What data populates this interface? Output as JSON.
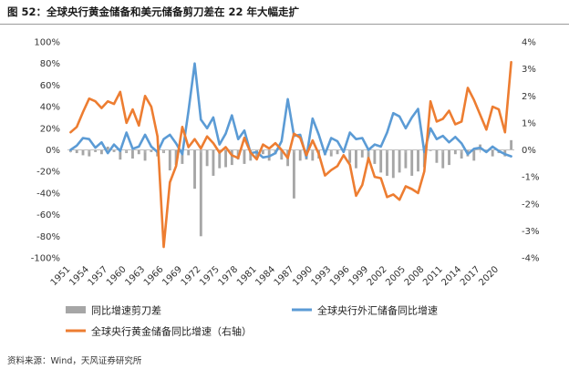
{
  "header": {
    "title": "图 52：全球央行黄金储备和美元储备剪刀差在 22 年大幅走扩"
  },
  "footer": {
    "source": "资料来源：Wind，天风证券研究所"
  },
  "chart_data": {
    "type": "bar+line",
    "title": "全球央行黄金储备和美元储备剪刀差在 22 年大幅走扩",
    "years": [
      1951,
      1952,
      1953,
      1954,
      1955,
      1956,
      1957,
      1958,
      1959,
      1960,
      1961,
      1962,
      1963,
      1964,
      1965,
      1966,
      1967,
      1968,
      1969,
      1970,
      1971,
      1972,
      1973,
      1974,
      1975,
      1976,
      1977,
      1978,
      1979,
      1980,
      1981,
      1982,
      1983,
      1984,
      1985,
      1986,
      1987,
      1988,
      1989,
      1990,
      1991,
      1992,
      1993,
      1994,
      1995,
      1996,
      1997,
      1998,
      1999,
      2000,
      2001,
      2002,
      2003,
      2004,
      2005,
      2006,
      2007,
      2008,
      2009,
      2010,
      2011,
      2012,
      2013,
      2014,
      2015,
      2016,
      2017,
      2018,
      2019,
      2020,
      2021,
      2022
    ],
    "x_tick_labels": [
      "1951",
      "1954",
      "1957",
      "1960",
      "1963",
      "1966",
      "1969",
      "1972",
      "1975",
      "1978",
      "1981",
      "1984",
      "1987",
      "1990",
      "1993",
      "1996",
      "1999",
      "2002",
      "2005",
      "2008",
      "2011",
      "2014",
      "2017",
      "2020"
    ],
    "left_axis": {
      "ylim": [
        -100,
        100
      ],
      "ticks": [
        "100%",
        "80%",
        "60%",
        "40%",
        "20%",
        "0%",
        "-20%",
        "-40%",
        "-60%",
        "-80%",
        "-100%"
      ]
    },
    "right_axis": {
      "ylim": [
        -4,
        4
      ],
      "ticks": [
        "4%",
        "3%",
        "2%",
        "1%",
        "0%",
        "-1%",
        "-2%",
        "-3%",
        "-4%"
      ]
    },
    "colors": {
      "bar": "#a6a6a6",
      "line_blue": "#5b9bd5",
      "line_orange": "#ed7d31",
      "axis": "#bfbfbf"
    },
    "series": [
      {
        "name": "同比增速剪刀差",
        "axis": "left",
        "type": "bar",
        "values": [
          -2,
          -3,
          -5,
          -6,
          -2,
          -4,
          3,
          -2,
          -9,
          -3,
          -8,
          -4,
          -10,
          -2,
          -6,
          -3,
          -19,
          -14,
          -13,
          -5,
          -36,
          -80,
          -15,
          -24,
          -17,
          -16,
          -14,
          -9,
          -13,
          -10,
          -7,
          -4,
          -10,
          -4,
          -9,
          -15,
          -45,
          -10,
          -9,
          -10,
          -8,
          -5,
          -6,
          -4,
          -2,
          -12,
          -17,
          -7,
          -11,
          -13,
          -21,
          -24,
          -26,
          -21,
          -17,
          -24,
          -20,
          -16,
          -1,
          -12,
          -17,
          -14,
          -4,
          -8,
          -6,
          -10,
          5,
          -2,
          -6,
          -3,
          -6,
          9
        ]
      },
      {
        "name": "全球央行外汇储备同比增速",
        "axis": "left",
        "type": "line",
        "values": [
          0,
          4,
          11,
          10,
          2,
          7,
          -3,
          5,
          -1,
          16,
          1,
          3,
          14,
          3,
          -2,
          10,
          14,
          6,
          -4,
          36,
          80,
          28,
          20,
          30,
          5,
          15,
          32,
          10,
          18,
          -3,
          -2,
          -7,
          -6,
          -3,
          8,
          47,
          13,
          14,
          -7,
          29,
          14,
          -4,
          11,
          8,
          -2,
          16,
          10,
          11,
          0,
          5,
          3,
          16,
          34,
          31,
          20,
          30,
          38,
          -2,
          20,
          10,
          13,
          7,
          12,
          6,
          -4,
          1,
          2,
          -2,
          3,
          -1,
          -4,
          -6
        ]
      },
      {
        "name": "全球央行黄金储备同比增速（右轴）",
        "axis": "right",
        "type": "line",
        "values": [
          0.65,
          0.85,
          1.4,
          1.9,
          1.8,
          1.55,
          1.8,
          1.7,
          2.15,
          1.0,
          1.5,
          0.9,
          2.0,
          1.6,
          0.5,
          -3.6,
          -1.2,
          -0.6,
          0.85,
          0.1,
          0.4,
          0.05,
          0.5,
          0.25,
          -0.1,
          0.1,
          -0.2,
          -0.3,
          0.45,
          -0.1,
          -0.35,
          0.2,
          0.05,
          0.25,
          0.0,
          -0.3,
          0.6,
          0.45,
          -0.2,
          0.35,
          -0.15,
          -0.95,
          -0.75,
          -0.6,
          -0.2,
          -0.55,
          -1.7,
          -1.3,
          -0.3,
          -1.0,
          -1.05,
          -1.75,
          -1.65,
          -1.85,
          -1.35,
          -1.45,
          -1.6,
          -0.8,
          1.8,
          1.05,
          1.15,
          1.45,
          0.95,
          1.05,
          2.3,
          1.85,
          1.3,
          0.75,
          1.6,
          1.5,
          0.65,
          3.25
        ]
      }
    ],
    "legend": {
      "position": "bottom"
    }
  }
}
